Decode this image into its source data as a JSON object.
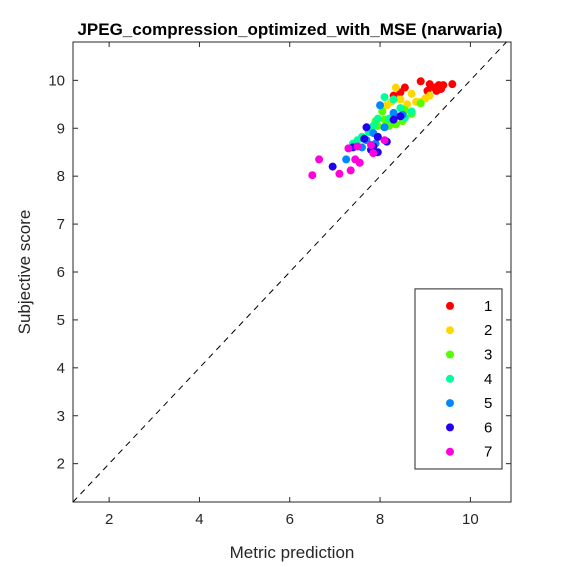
{
  "chart_data": {
    "type": "scatter",
    "title": "JPEG_compression_optimized_with_MSE (narwaria)",
    "xlabel": "Metric prediction",
    "ylabel": "Subjective score",
    "xlim": [
      1.2,
      10.9
    ],
    "ylim": [
      1.2,
      10.8
    ],
    "xticks": [
      2,
      4,
      6,
      8,
      10
    ],
    "yticks": [
      2,
      3,
      4,
      5,
      6,
      7,
      8,
      9,
      10
    ],
    "diagonal": "y = x (dashed)",
    "grid": false,
    "legend_position": "bottom-right",
    "series": [
      {
        "name": "1",
        "color": "#ff0000",
        "points": [
          [
            8.9,
            9.98
          ],
          [
            9.1,
            9.92
          ],
          [
            9.2,
            9.85
          ],
          [
            9.3,
            9.9
          ],
          [
            9.35,
            9.82
          ],
          [
            9.25,
            9.78
          ],
          [
            9.05,
            9.78
          ],
          [
            9.6,
            9.92
          ],
          [
            8.55,
            9.85
          ],
          [
            8.45,
            9.75
          ],
          [
            8.3,
            9.68
          ],
          [
            9.4,
            9.9
          ]
        ]
      },
      {
        "name": "2",
        "color": "#ffd700",
        "points": [
          [
            8.35,
            9.85
          ],
          [
            8.7,
            9.72
          ],
          [
            9.0,
            9.62
          ],
          [
            9.1,
            9.68
          ],
          [
            8.45,
            9.6
          ],
          [
            8.25,
            9.55
          ],
          [
            8.6,
            9.5
          ],
          [
            8.15,
            9.48
          ],
          [
            8.8,
            9.55
          ],
          [
            8.5,
            9.4
          ],
          [
            8.9,
            9.55
          ]
        ]
      },
      {
        "name": "3",
        "color": "#55ff00",
        "points": [
          [
            8.9,
            9.52
          ],
          [
            8.55,
            9.38
          ],
          [
            8.7,
            9.3
          ],
          [
            8.3,
            9.28
          ],
          [
            8.05,
            9.35
          ],
          [
            8.1,
            9.18
          ],
          [
            7.9,
            9.15
          ],
          [
            8.35,
            9.08
          ],
          [
            8.5,
            9.15
          ],
          [
            8.2,
            9.05
          ],
          [
            7.95,
            9.05
          ],
          [
            8.15,
            9.1
          ]
        ]
      },
      {
        "name": "4",
        "color": "#00ff99",
        "points": [
          [
            8.1,
            9.65
          ],
          [
            8.3,
            9.6
          ],
          [
            8.45,
            9.42
          ],
          [
            8.7,
            9.35
          ],
          [
            8.55,
            9.22
          ],
          [
            8.2,
            9.2
          ],
          [
            7.95,
            9.2
          ],
          [
            7.85,
            9.05
          ],
          [
            7.75,
            8.92
          ],
          [
            7.5,
            8.75
          ],
          [
            7.6,
            8.82
          ],
          [
            7.4,
            8.68
          ]
        ]
      },
      {
        "name": "5",
        "color": "#0088ff",
        "points": [
          [
            8.0,
            9.48
          ],
          [
            8.3,
            9.32
          ],
          [
            8.5,
            9.28
          ],
          [
            8.1,
            9.02
          ],
          [
            7.85,
            8.9
          ],
          [
            7.95,
            8.82
          ],
          [
            7.7,
            8.75
          ],
          [
            7.9,
            8.68
          ],
          [
            7.6,
            8.6
          ],
          [
            7.25,
            8.35
          ]
        ]
      },
      {
        "name": "6",
        "color": "#2200ee",
        "points": [
          [
            8.45,
            9.25
          ],
          [
            8.3,
            9.18
          ],
          [
            7.7,
            9.02
          ],
          [
            7.95,
            8.82
          ],
          [
            7.65,
            8.78
          ],
          [
            8.15,
            8.72
          ],
          [
            7.85,
            8.62
          ],
          [
            7.4,
            8.6
          ],
          [
            7.8,
            8.55
          ],
          [
            7.95,
            8.5
          ],
          [
            6.95,
            8.2
          ]
        ]
      },
      {
        "name": "7",
        "color": "#ff00dd",
        "points": [
          [
            6.5,
            8.02
          ],
          [
            6.65,
            8.35
          ],
          [
            7.1,
            8.05
          ],
          [
            7.35,
            8.12
          ],
          [
            7.45,
            8.35
          ],
          [
            7.55,
            8.28
          ],
          [
            7.3,
            8.58
          ],
          [
            7.85,
            8.48
          ],
          [
            8.1,
            8.75
          ],
          [
            7.8,
            8.65
          ],
          [
            7.5,
            8.62
          ]
        ]
      }
    ]
  }
}
